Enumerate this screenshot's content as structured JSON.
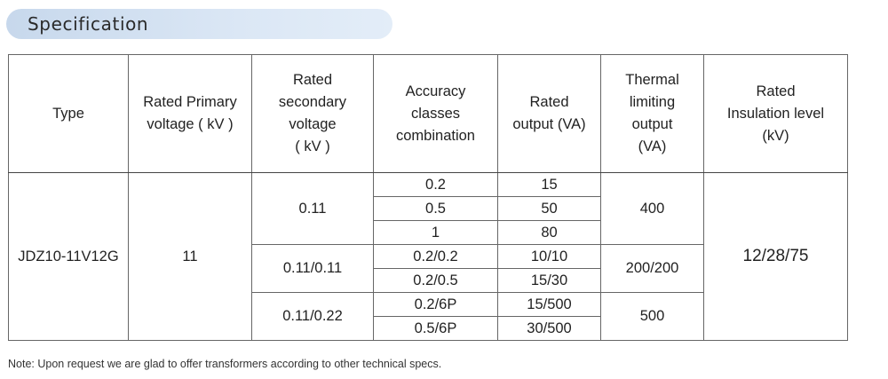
{
  "section_title": "Specification",
  "table": {
    "headers": {
      "type": [
        "Type"
      ],
      "primary_voltage": [
        "Rated Primary",
        "voltage ( kV )"
      ],
      "secondary_voltage": [
        "Rated",
        "secondary",
        "voltage",
        "( kV )"
      ],
      "accuracy": [
        "Accuracy",
        "classes",
        "combination"
      ],
      "rated_output": [
        "Rated",
        "output (VA)"
      ],
      "thermal": [
        "Thermal",
        "limiting",
        "output",
        "(VA)"
      ],
      "insulation": [
        "Rated",
        "Insulation level",
        "(kV)"
      ]
    },
    "type_value": "JDZ10-11V12G",
    "primary_value": "11",
    "insulation_value": "12/28/75",
    "groups": [
      {
        "secondary": "0.11",
        "thermal": "400",
        "rows": [
          {
            "accuracy": "0.2",
            "output": "15"
          },
          {
            "accuracy": "0.5",
            "output": "50"
          },
          {
            "accuracy": "1",
            "output": "80"
          }
        ]
      },
      {
        "secondary": "0.11/0.11",
        "thermal": "200/200",
        "rows": [
          {
            "accuracy": "0.2/0.2",
            "output": "10/10"
          },
          {
            "accuracy": "0.2/0.5",
            "output": "15/30"
          }
        ]
      },
      {
        "secondary": "0.11/0.22",
        "thermal": "500",
        "rows": [
          {
            "accuracy": "0.2/6P",
            "output": "15/500"
          },
          {
            "accuracy": "0.5/6P",
            "output": "30/500"
          }
        ]
      }
    ]
  },
  "note": "Note: Upon request we are glad to offer transformers according to other technical specs."
}
